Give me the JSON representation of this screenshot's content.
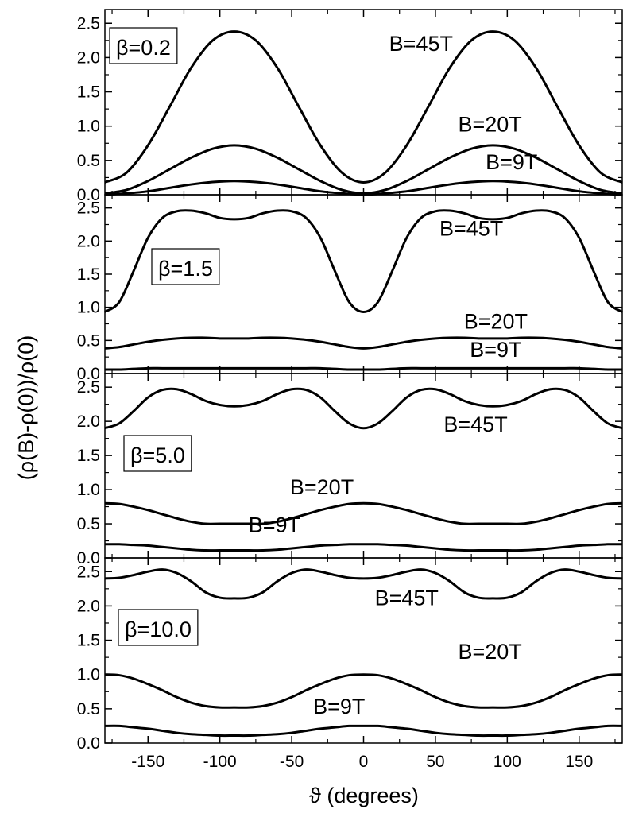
{
  "figure": {
    "ylabel": "(ρ(B)-ρ(0))/ρ(0)",
    "xlabel": "ϑ (degrees)"
  },
  "chart_data": [
    {
      "type": "line",
      "panel_label": "β=0.2",
      "xlim": [
        -180,
        180
      ],
      "ylim": [
        0,
        2.7
      ],
      "xticks": [
        -150,
        -100,
        -50,
        0,
        50,
        100,
        150
      ],
      "xtick_labels": [
        "-150",
        "-100",
        "-50",
        "0",
        "50",
        "100",
        "150"
      ],
      "yticks": [
        0.0,
        0.5,
        1.0,
        1.5,
        2.0,
        2.5
      ],
      "ytick_labels": [
        "0.0",
        "0.5",
        "1.0",
        "1.5",
        "2.0",
        "2.5"
      ],
      "x": [
        -180,
        -165,
        -150,
        -135,
        -120,
        -105,
        -90,
        -75,
        -60,
        -45,
        -30,
        -15,
        0,
        15,
        30,
        45,
        60,
        75,
        90,
        105,
        120,
        135,
        150,
        165,
        180
      ],
      "series": [
        {
          "name": "B=45T",
          "label_at": [
            40,
            2.1
          ],
          "values": [
            0.18,
            0.32,
            0.72,
            1.28,
            1.85,
            2.25,
            2.38,
            2.25,
            1.85,
            1.28,
            0.72,
            0.32,
            0.18,
            0.32,
            0.72,
            1.28,
            1.85,
            2.25,
            2.38,
            2.25,
            1.85,
            1.28,
            0.72,
            0.32,
            0.18
          ]
        },
        {
          "name": "B=20T",
          "label_at": [
            88,
            0.92
          ],
          "values": [
            0.02,
            0.07,
            0.2,
            0.37,
            0.54,
            0.67,
            0.72,
            0.67,
            0.54,
            0.37,
            0.2,
            0.07,
            0.02,
            0.07,
            0.2,
            0.37,
            0.54,
            0.67,
            0.72,
            0.67,
            0.54,
            0.37,
            0.2,
            0.07,
            0.02
          ]
        },
        {
          "name": "B=9T",
          "label_at": [
            103,
            0.37
          ],
          "values": [
            0.0,
            0.02,
            0.05,
            0.1,
            0.15,
            0.185,
            0.2,
            0.185,
            0.15,
            0.1,
            0.05,
            0.02,
            0.0,
            0.02,
            0.05,
            0.1,
            0.15,
            0.185,
            0.2,
            0.185,
            0.15,
            0.1,
            0.05,
            0.02,
            0.0
          ]
        }
      ]
    },
    {
      "type": "line",
      "panel_label": "β=1.5",
      "xlim": [
        -180,
        180
      ],
      "ylim": [
        0,
        2.7
      ],
      "xticks": [
        -150,
        -100,
        -50,
        0,
        50,
        100,
        150
      ],
      "xtick_labels": [
        "-150",
        "-100",
        "-50",
        "0",
        "50",
        "100",
        "150"
      ],
      "yticks": [
        0.0,
        0.5,
        1.0,
        1.5,
        2.0,
        2.5
      ],
      "ytick_labels": [
        "0.0",
        "0.5",
        "1.0",
        "1.5",
        "2.0",
        "2.5"
      ],
      "x": [
        -180,
        -170,
        -160,
        -150,
        -140,
        -130,
        -120,
        -110,
        -100,
        -90,
        -80,
        -70,
        -60,
        -50,
        -40,
        -30,
        -20,
        -10,
        0,
        10,
        20,
        30,
        40,
        50,
        60,
        70,
        80,
        90,
        100,
        110,
        120,
        130,
        140,
        150,
        160,
        170,
        180
      ],
      "series": [
        {
          "name": "B=45T",
          "label_at": [
            75,
            2.08
          ],
          "values": [
            0.93,
            1.08,
            1.55,
            2.05,
            2.35,
            2.45,
            2.46,
            2.42,
            2.35,
            2.33,
            2.35,
            2.42,
            2.46,
            2.45,
            2.35,
            2.05,
            1.55,
            1.08,
            0.93,
            1.08,
            1.55,
            2.05,
            2.35,
            2.45,
            2.46,
            2.42,
            2.35,
            2.33,
            2.35,
            2.42,
            2.46,
            2.45,
            2.35,
            2.05,
            1.55,
            1.08,
            0.93
          ]
        },
        {
          "name": "B=20T",
          "label_at": [
            92,
            0.68
          ],
          "values": [
            0.38,
            0.4,
            0.44,
            0.48,
            0.51,
            0.53,
            0.54,
            0.54,
            0.53,
            0.53,
            0.53,
            0.54,
            0.54,
            0.53,
            0.51,
            0.48,
            0.44,
            0.4,
            0.38,
            0.4,
            0.44,
            0.48,
            0.51,
            0.53,
            0.54,
            0.54,
            0.53,
            0.53,
            0.53,
            0.54,
            0.54,
            0.53,
            0.51,
            0.48,
            0.44,
            0.4,
            0.38
          ]
        },
        {
          "name": "B=9T",
          "label_at": [
            92,
            0.25
          ],
          "values": [
            0.06,
            0.06,
            0.07,
            0.08,
            0.08,
            0.08,
            0.08,
            0.08,
            0.08,
            0.08,
            0.08,
            0.08,
            0.08,
            0.08,
            0.08,
            0.08,
            0.07,
            0.06,
            0.06,
            0.06,
            0.07,
            0.08,
            0.08,
            0.08,
            0.08,
            0.08,
            0.08,
            0.08,
            0.08,
            0.08,
            0.08,
            0.08,
            0.08,
            0.08,
            0.07,
            0.06,
            0.06
          ]
        }
      ]
    },
    {
      "type": "line",
      "panel_label": "β=5.0",
      "xlim": [
        -180,
        180
      ],
      "ylim": [
        0,
        2.7
      ],
      "xticks": [
        -150,
        -100,
        -50,
        0,
        50,
        100,
        150
      ],
      "xtick_labels": [
        "-150",
        "-100",
        "-50",
        "0",
        "50",
        "100",
        "150"
      ],
      "yticks": [
        0.0,
        0.5,
        1.0,
        1.5,
        2.0,
        2.5
      ],
      "ytick_labels": [
        "0.0",
        "0.5",
        "1.0",
        "1.5",
        "2.0",
        "2.5"
      ],
      "x": [
        -180,
        -170,
        -160,
        -150,
        -140,
        -130,
        -120,
        -110,
        -100,
        -90,
        -80,
        -70,
        -60,
        -50,
        -40,
        -30,
        -20,
        -10,
        0,
        10,
        20,
        30,
        40,
        50,
        60,
        70,
        80,
        90,
        100,
        110,
        120,
        130,
        140,
        150,
        160,
        170,
        180
      ],
      "series": [
        {
          "name": "B=45T",
          "label_at": [
            78,
            1.85
          ],
          "values": [
            1.9,
            1.97,
            2.15,
            2.35,
            2.46,
            2.47,
            2.4,
            2.3,
            2.24,
            2.22,
            2.24,
            2.3,
            2.4,
            2.47,
            2.46,
            2.35,
            2.15,
            1.97,
            1.9,
            1.97,
            2.15,
            2.35,
            2.46,
            2.47,
            2.4,
            2.3,
            2.24,
            2.22,
            2.24,
            2.3,
            2.4,
            2.47,
            2.46,
            2.35,
            2.15,
            1.97,
            1.9
          ]
        },
        {
          "name": "B=20T",
          "label_at": [
            -29,
            0.93
          ],
          "values": [
            0.8,
            0.79,
            0.75,
            0.7,
            0.64,
            0.58,
            0.53,
            0.5,
            0.5,
            0.5,
            0.5,
            0.5,
            0.53,
            0.58,
            0.64,
            0.7,
            0.75,
            0.79,
            0.8,
            0.79,
            0.75,
            0.7,
            0.64,
            0.58,
            0.53,
            0.5,
            0.5,
            0.5,
            0.5,
            0.5,
            0.53,
            0.58,
            0.64,
            0.7,
            0.75,
            0.79,
            0.8
          ]
        },
        {
          "name": "B=9T",
          "label_at": [
            -62,
            0.38
          ],
          "values": [
            0.2,
            0.2,
            0.19,
            0.18,
            0.16,
            0.14,
            0.12,
            0.11,
            0.11,
            0.11,
            0.11,
            0.11,
            0.12,
            0.14,
            0.16,
            0.18,
            0.19,
            0.2,
            0.2,
            0.2,
            0.19,
            0.18,
            0.16,
            0.14,
            0.12,
            0.11,
            0.11,
            0.11,
            0.11,
            0.11,
            0.12,
            0.14,
            0.16,
            0.18,
            0.19,
            0.2,
            0.2
          ]
        }
      ]
    },
    {
      "type": "line",
      "panel_label": "β=10.0",
      "xlim": [
        -180,
        180
      ],
      "ylim": [
        0,
        2.7
      ],
      "xticks": [
        -150,
        -100,
        -50,
        0,
        50,
        100,
        150
      ],
      "xtick_labels": [
        "-150",
        "-100",
        "-50",
        "0",
        "50",
        "100",
        "150"
      ],
      "yticks": [
        0.0,
        0.5,
        1.0,
        1.5,
        2.0,
        2.5
      ],
      "ytick_labels": [
        "0.0",
        "0.5",
        "1.0",
        "1.5",
        "2.0",
        "2.5"
      ],
      "x": [
        -180,
        -170,
        -160,
        -150,
        -140,
        -130,
        -120,
        -110,
        -100,
        -90,
        -80,
        -70,
        -60,
        -50,
        -40,
        -30,
        -20,
        -10,
        0,
        10,
        20,
        30,
        40,
        50,
        60,
        70,
        80,
        90,
        100,
        110,
        120,
        130,
        140,
        150,
        160,
        170,
        180
      ],
      "series": [
        {
          "name": "B=45T",
          "label_at": [
            30,
            2.01
          ],
          "values": [
            2.4,
            2.41,
            2.45,
            2.5,
            2.53,
            2.48,
            2.36,
            2.2,
            2.12,
            2.11,
            2.12,
            2.2,
            2.36,
            2.48,
            2.53,
            2.5,
            2.45,
            2.41,
            2.4,
            2.41,
            2.45,
            2.5,
            2.53,
            2.48,
            2.36,
            2.2,
            2.12,
            2.11,
            2.12,
            2.2,
            2.36,
            2.48,
            2.53,
            2.5,
            2.45,
            2.41,
            2.4
          ]
        },
        {
          "name": "B=20T",
          "label_at": [
            88,
            1.23
          ],
          "values": [
            1.0,
            0.99,
            0.94,
            0.86,
            0.77,
            0.67,
            0.59,
            0.54,
            0.52,
            0.52,
            0.52,
            0.54,
            0.59,
            0.67,
            0.77,
            0.86,
            0.94,
            0.99,
            1.0,
            0.99,
            0.94,
            0.86,
            0.77,
            0.67,
            0.59,
            0.54,
            0.52,
            0.52,
            0.52,
            0.54,
            0.59,
            0.67,
            0.77,
            0.86,
            0.94,
            0.99,
            1.0
          ]
        },
        {
          "name": "B=9T",
          "label_at": [
            -17,
            0.43
          ],
          "values": [
            0.25,
            0.25,
            0.23,
            0.21,
            0.18,
            0.15,
            0.13,
            0.12,
            0.11,
            0.11,
            0.11,
            0.12,
            0.13,
            0.15,
            0.18,
            0.21,
            0.23,
            0.25,
            0.25,
            0.25,
            0.23,
            0.21,
            0.18,
            0.15,
            0.13,
            0.12,
            0.11,
            0.11,
            0.11,
            0.12,
            0.13,
            0.15,
            0.18,
            0.21,
            0.23,
            0.25,
            0.25
          ]
        }
      ]
    }
  ]
}
